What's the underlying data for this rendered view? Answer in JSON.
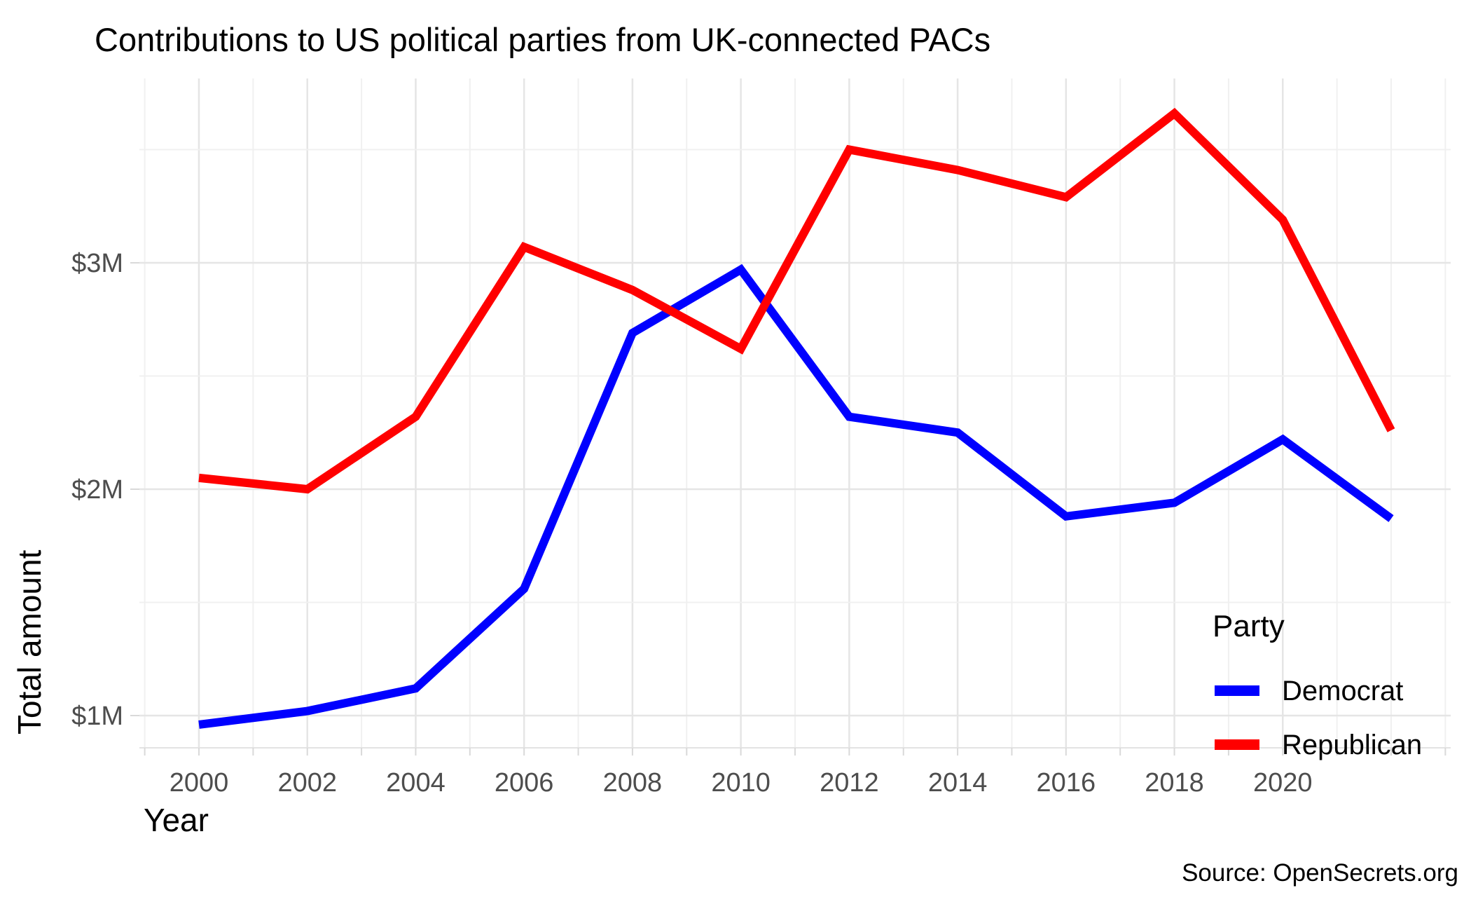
{
  "chart_data": {
    "type": "line",
    "title": "Contributions to US political parties from UK-connected PACs",
    "xlabel": "Year",
    "ylabel": "Total amount",
    "source_note": "Source: OpenSecrets.org",
    "legend": {
      "title": "Party",
      "position": "inside-right",
      "entries": [
        "Democrat",
        "Republican"
      ]
    },
    "x": [
      2000,
      2002,
      2004,
      2006,
      2008,
      2010,
      2012,
      2014,
      2016,
      2018,
      2020,
      2022
    ],
    "series": [
      {
        "name": "Democrat",
        "color": "#0000FF",
        "values": [
          0.96,
          1.02,
          1.12,
          1.56,
          2.69,
          2.97,
          2.32,
          2.25,
          1.88,
          1.94,
          2.22,
          1.87
        ]
      },
      {
        "name": "Republican",
        "color": "#FF0000",
        "values": [
          2.05,
          2.0,
          2.32,
          3.07,
          2.88,
          2.62,
          3.5,
          3.41,
          3.29,
          3.66,
          3.19,
          2.26
        ]
      }
    ],
    "units": "million USD",
    "x_ticks": [
      {
        "value": 2000,
        "label": "2000"
      },
      {
        "value": 2002,
        "label": "2002"
      },
      {
        "value": 2004,
        "label": "2004"
      },
      {
        "value": 2006,
        "label": "2006"
      },
      {
        "value": 2008,
        "label": "2008"
      },
      {
        "value": 2010,
        "label": "2010"
      },
      {
        "value": 2012,
        "label": "2012"
      },
      {
        "value": 2014,
        "label": "2014"
      },
      {
        "value": 2016,
        "label": "2016"
      },
      {
        "value": 2018,
        "label": "2018"
      },
      {
        "value": 2020,
        "label": "2020"
      }
    ],
    "y_ticks": [
      {
        "value": 1,
        "label": "$1M"
      },
      {
        "value": 2,
        "label": "$2M"
      },
      {
        "value": 3,
        "label": "$3M"
      }
    ],
    "y_minor_ticks": [
      1.5,
      2.5,
      3.5
    ],
    "x_minor_grid_years": [
      1999,
      2001,
      2003,
      2005,
      2007,
      2009,
      2011,
      2013,
      2015,
      2017,
      2019,
      2021,
      2022,
      2023
    ],
    "xlim": [
      1998.9,
      2023.1
    ],
    "ylim": [
      0.79,
      3.81
    ],
    "grid": {
      "major": true,
      "minor": true,
      "background": "white"
    }
  },
  "colors": {
    "democrat_line": "#0000FF",
    "republican_line": "#FF0000",
    "grid_major": "#E5E5E5",
    "grid_minor": "#F0F0F0",
    "axis_line": "#E3E3E3",
    "tick_mark": "#D9D9D9",
    "tick_text": "#4D4D4D",
    "text": "#000000",
    "background": "#FFFFFF"
  }
}
